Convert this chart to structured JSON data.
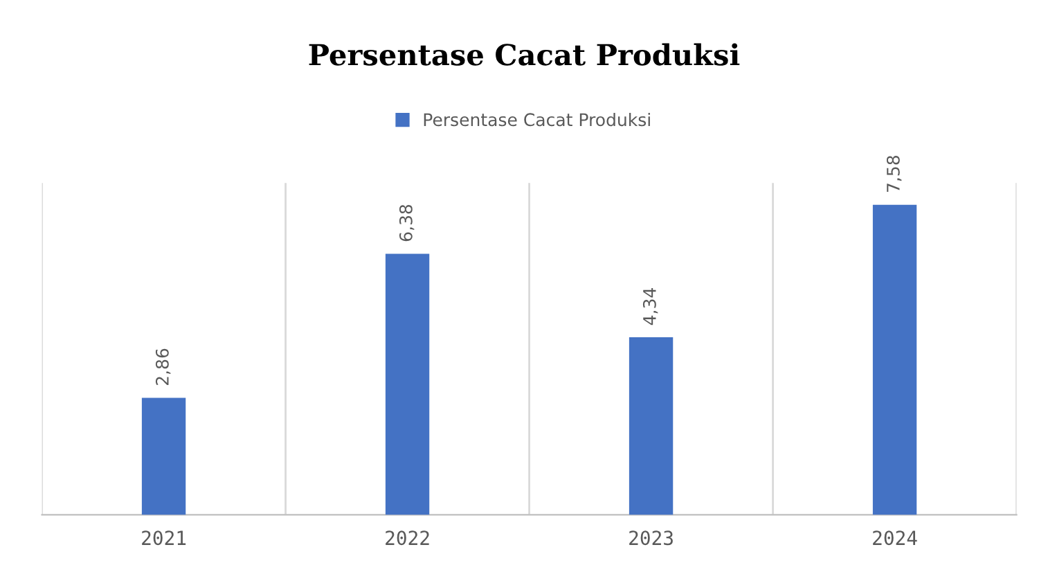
{
  "chart_data": {
    "type": "bar",
    "title": "Persentase Cacat Produksi",
    "categories": [
      "2021",
      "2022",
      "2023",
      "2024"
    ],
    "series": [
      {
        "name": "Persentase Cacat Produksi",
        "color": "#4472c4",
        "values": [
          2.86,
          6.38,
          4.34,
          7.58
        ],
        "value_labels": [
          "2,86",
          "6,38",
          "4,34",
          "7,58"
        ]
      }
    ],
    "legend": "top",
    "grid": "x"
  }
}
